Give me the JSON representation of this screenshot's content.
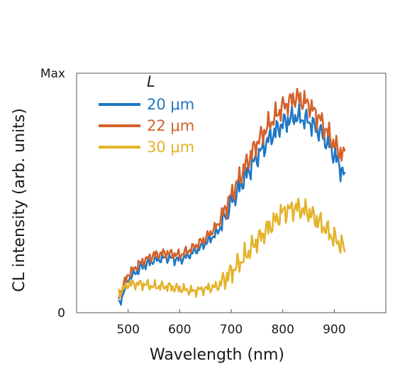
{
  "chart_data": {
    "type": "line",
    "xlabel": "Wavelength (nm)",
    "ylabel": "CL intensity (arb. units)",
    "xlim": [
      400,
      1000
    ],
    "ylim": [
      0,
      1
    ],
    "x_ticks": [
      500,
      600,
      700,
      800,
      900
    ],
    "y_tick_labels": [
      "0",
      "Max"
    ],
    "legend": {
      "title": "L",
      "placement": "top-left"
    },
    "grid": false,
    "series": [
      {
        "name": "20 μm",
        "color": "#1f77c4",
        "x": [
          482,
          500,
          525,
          550,
          575,
          600,
          625,
          650,
          675,
          700,
          725,
          750,
          775,
          800,
          825,
          850,
          875,
          900,
          920
        ],
        "y": [
          0.03,
          0.14,
          0.19,
          0.22,
          0.23,
          0.22,
          0.25,
          0.29,
          0.34,
          0.46,
          0.56,
          0.65,
          0.73,
          0.79,
          0.82,
          0.8,
          0.75,
          0.66,
          0.57
        ]
      },
      {
        "name": "22 μm",
        "color": "#d4622a",
        "x": [
          482,
          500,
          525,
          550,
          575,
          600,
          625,
          650,
          675,
          700,
          725,
          750,
          775,
          800,
          825,
          850,
          875,
          900,
          920
        ],
        "y": [
          0.07,
          0.16,
          0.21,
          0.24,
          0.25,
          0.24,
          0.27,
          0.31,
          0.37,
          0.49,
          0.6,
          0.71,
          0.79,
          0.86,
          0.9,
          0.87,
          0.8,
          0.7,
          0.65
        ]
      },
      {
        "name": "30 μm",
        "color": "#e3b32a",
        "x": [
          482,
          500,
          525,
          550,
          575,
          600,
          625,
          650,
          675,
          700,
          725,
          750,
          775,
          800,
          825,
          850,
          875,
          900,
          920
        ],
        "y": [
          0.08,
          0.12,
          0.12,
          0.11,
          0.11,
          0.1,
          0.09,
          0.1,
          0.11,
          0.17,
          0.23,
          0.3,
          0.36,
          0.42,
          0.44,
          0.42,
          0.37,
          0.31,
          0.27
        ]
      }
    ]
  }
}
